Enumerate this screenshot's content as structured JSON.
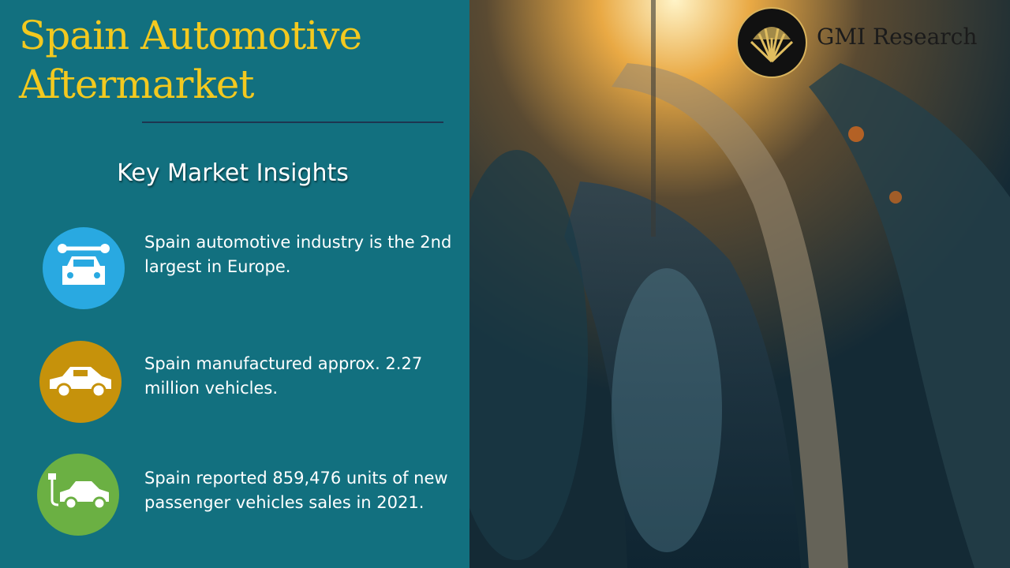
{
  "header": {
    "title": "Spain Automotive Aftermarket",
    "subtitle": "Key Market Insights"
  },
  "logo": {
    "text": "GMI Research"
  },
  "insights": [
    {
      "text": "Spain automotive industry is the 2nd largest in Europe."
    },
    {
      "text": "Spain manufactured approx. 2.27 million vehicles."
    },
    {
      "text": "Spain reported 859,476 units of new passenger vehicles sales in 2021."
    }
  ]
}
